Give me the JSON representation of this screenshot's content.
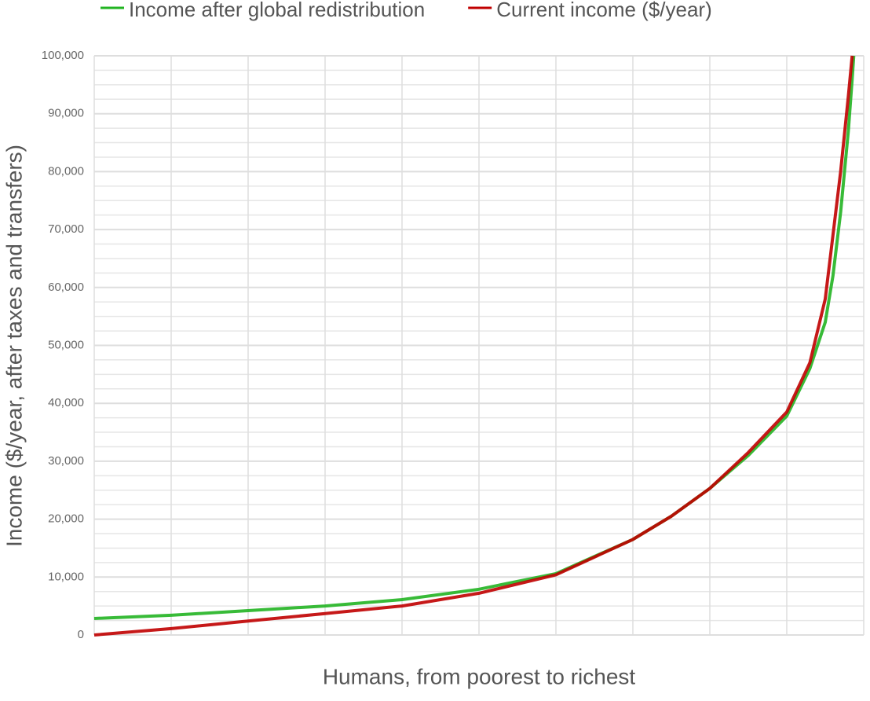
{
  "chart_data": {
    "type": "line",
    "x_label": "Humans, from poorest to richest",
    "y_label": "Income ($/year, after taxes and transfers)",
    "x": [
      0,
      10,
      20,
      30,
      40,
      50,
      60,
      70,
      75,
      80,
      85,
      90,
      93,
      95,
      96,
      97,
      98,
      98.5,
      98.7
    ],
    "series": [
      {
        "name": "Income after global redistribution",
        "color": "#22b422",
        "values": [
          2850,
          3400,
          4200,
          5000,
          6100,
          7900,
          10600,
          16500,
          20500,
          25300,
          31000,
          37800,
          46000,
          54000,
          62000,
          73000,
          87000,
          96000,
          100000
        ]
      },
      {
        "name": "Current income ($/year)",
        "color": "#c00000",
        "values": [
          0,
          1100,
          2400,
          3700,
          5000,
          7200,
          10400,
          16500,
          20500,
          25300,
          31500,
          38500,
          47000,
          58000,
          69000,
          80000,
          93000,
          100000,
          null
        ]
      }
    ],
    "xlim": [
      0,
      100
    ],
    "xticks": [
      0,
      10,
      20,
      30,
      40,
      50,
      60,
      70,
      80,
      90,
      100
    ],
    "ylim": [
      0,
      100000
    ],
    "yticks": [
      0,
      {
        "value": 10000,
        "label": "10,000"
      },
      {
        "value": 20000,
        "label": "20,000"
      },
      {
        "value": 30000,
        "label": "30,000"
      },
      {
        "value": 40000,
        "label": "40,000"
      },
      {
        "value": 50000,
        "label": "50,000"
      },
      {
        "value": 60000,
        "label": "60,000"
      },
      {
        "value": 70000,
        "label": "70,000"
      },
      {
        "value": 80000,
        "label": "80,000"
      },
      {
        "value": 90000,
        "label": "90,000"
      },
      {
        "value": 100000,
        "label": "100,000"
      }
    ],
    "minor_yticks": [
      2500,
      5000,
      7500,
      12500,
      15000,
      17500,
      22500,
      25000,
      27500,
      32500,
      35000,
      37500,
      42500,
      45000,
      47500,
      52500,
      55000,
      57500,
      62500,
      65000,
      67500,
      72500,
      75000,
      77500,
      82500,
      85000,
      87500,
      92500,
      95000,
      97500
    ],
    "grid": true,
    "legend": "top"
  }
}
